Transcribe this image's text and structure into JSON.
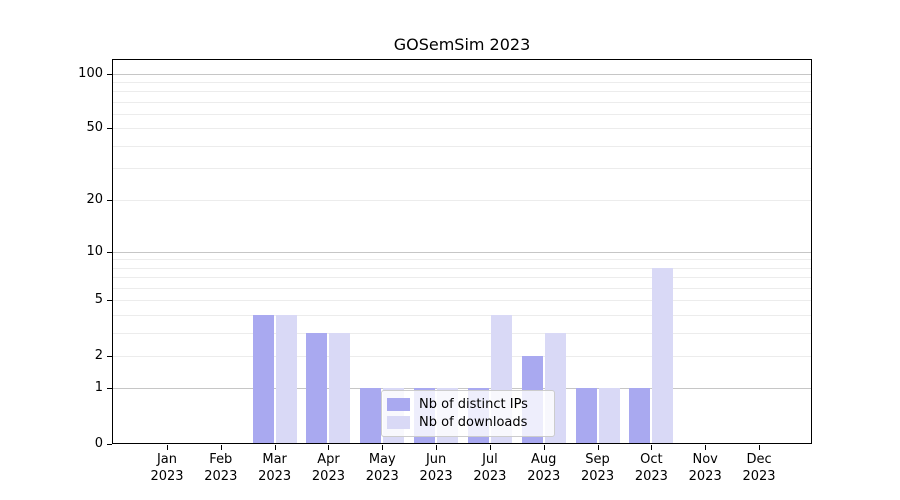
{
  "title": "GOSemSim 2023",
  "colors": {
    "bar_distinct_ips": "#a9a9f0",
    "bar_downloads": "#d9d9f6",
    "grid_minor": "#ececec",
    "grid_major": "#c6c6c6",
    "axis": "#000000",
    "legend_border": "#cccccc"
  },
  "chart_data": {
    "type": "bar",
    "title": "GOSemSim 2023",
    "xlabel": "",
    "ylabel": "",
    "yscale": "log1p",
    "ylim": [
      0,
      120
    ],
    "grid": true,
    "legend_position": "lower center (inside plot, overlapping bars)",
    "categories": [
      {
        "month": "Jan",
        "year": "2023"
      },
      {
        "month": "Feb",
        "year": "2023"
      },
      {
        "month": "Mar",
        "year": "2023"
      },
      {
        "month": "Apr",
        "year": "2023"
      },
      {
        "month": "May",
        "year": "2023"
      },
      {
        "month": "Jun",
        "year": "2023"
      },
      {
        "month": "Jul",
        "year": "2023"
      },
      {
        "month": "Aug",
        "year": "2023"
      },
      {
        "month": "Sep",
        "year": "2023"
      },
      {
        "month": "Oct",
        "year": "2023"
      },
      {
        "month": "Nov",
        "year": "2023"
      },
      {
        "month": "Dec",
        "year": "2023"
      }
    ],
    "series": [
      {
        "name": "Nb of distinct IPs",
        "color": "#a9a9f0",
        "values": [
          0,
          0,
          4,
          3,
          1,
          1,
          1,
          2,
          1,
          1,
          0,
          0
        ]
      },
      {
        "name": "Nb of downloads",
        "color": "#d9d9f6",
        "values": [
          0,
          0,
          4,
          3,
          1,
          1,
          4,
          3,
          1,
          8,
          0,
          0
        ]
      }
    ],
    "ytick_values": [
      0,
      1,
      2,
      5,
      10,
      20,
      50,
      100
    ],
    "ytick_labels": [
      "0",
      "1",
      "2",
      "5",
      "10",
      "20",
      "50",
      "100"
    ],
    "major_gridlines": [
      1,
      10,
      100
    ],
    "minor_gridlines": [
      2,
      3,
      4,
      5,
      6,
      7,
      8,
      9,
      20,
      30,
      40,
      50,
      60,
      70,
      80,
      90
    ]
  }
}
